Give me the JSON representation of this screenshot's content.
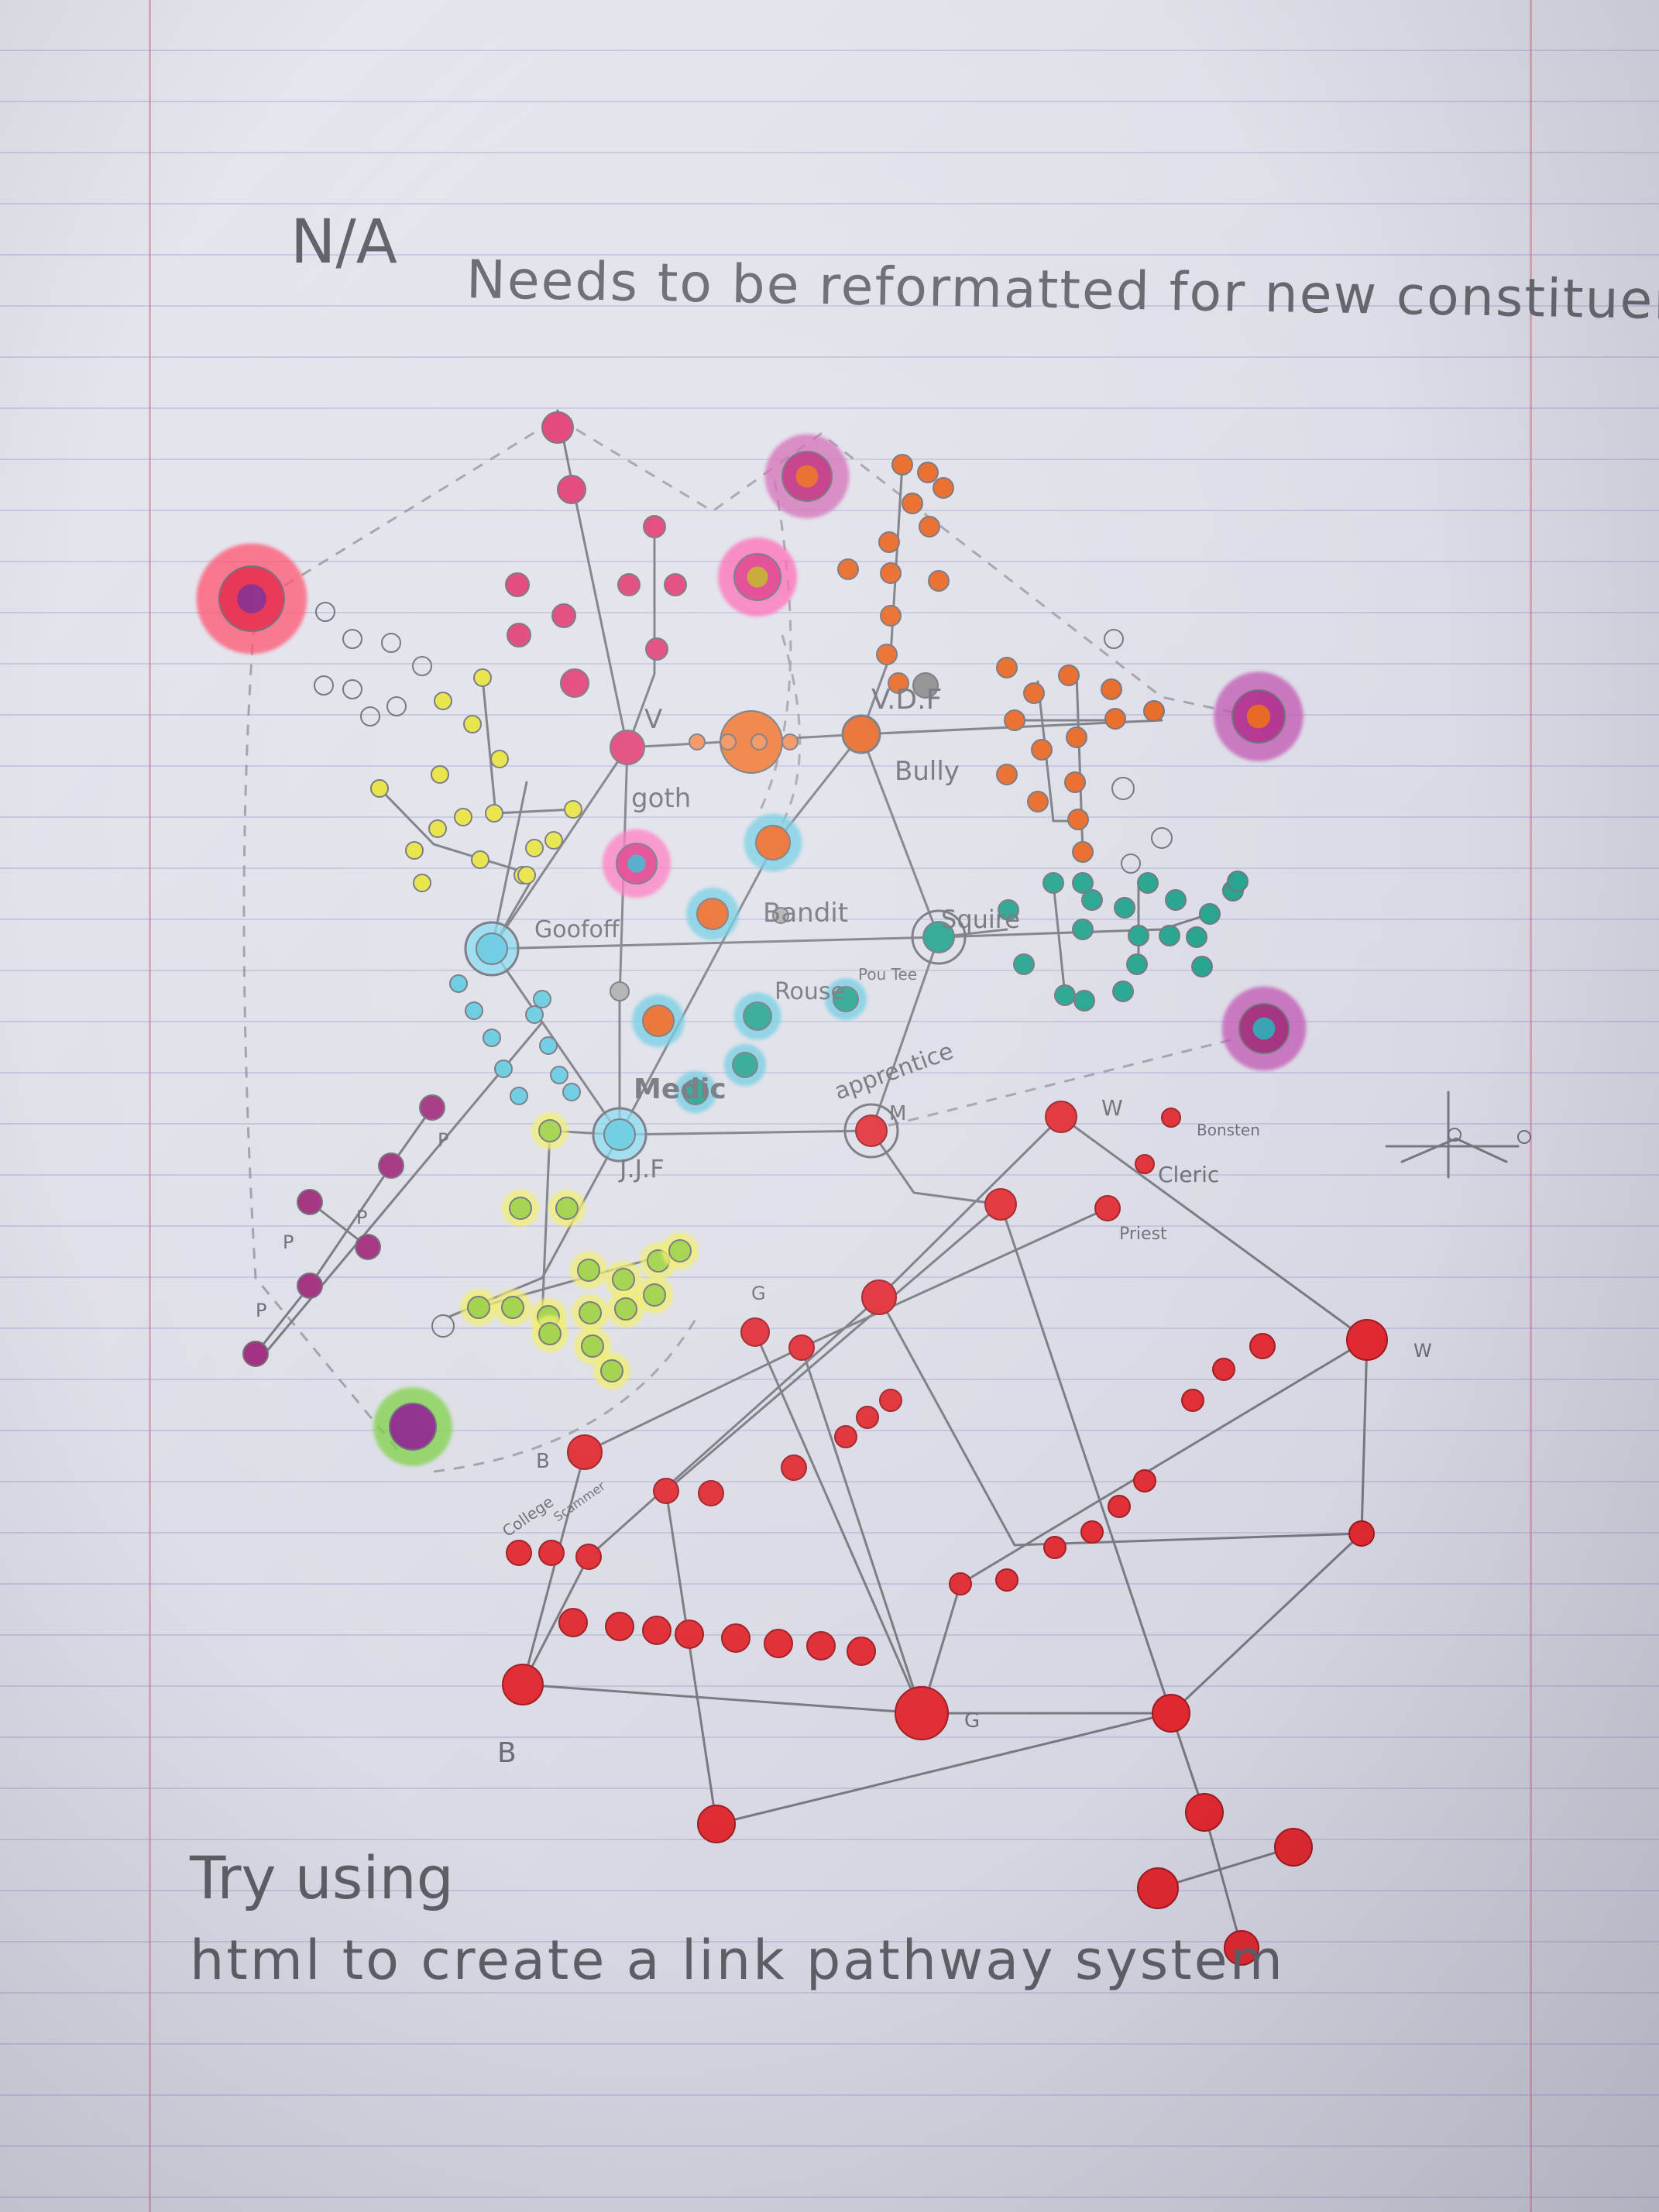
{
  "header": {
    "na_label": "N/A",
    "note": "Needs to be reformatted for new constituences"
  },
  "diagram_labels": {
    "v_top": "V",
    "v_df": "V.D.F",
    "goth": "goth",
    "bully": "Bully",
    "goofoff": "Goofoff",
    "bandit": "Bandit",
    "squire": "Squire",
    "rouse": "Rouse",
    "pou_tee": "Pou Tee",
    "apprentice": "apprentice",
    "medic": "Medic",
    "jjf": "J.J.F",
    "m": "M",
    "w_top": "W",
    "bonsten": "Bonsten",
    "cleric": "Cleric",
    "priest": "Priest",
    "w_right": "W",
    "g_mid": "G",
    "g_bottom": "G",
    "b_mid": "B",
    "b_bottom": "B",
    "college": "College",
    "scammer": "Scammer",
    "p_marks": "P"
  },
  "footer": {
    "line1": "Try using",
    "line2": "html to create a link pathway system"
  },
  "colors": {
    "paper": "#e3e3ec",
    "rule_line": "#8c96cd",
    "margin_line": "#d778a0",
    "pencil": "#6b6b74",
    "pink": "#e03a72",
    "orange": "#e8621c",
    "yellow": "#e6e23a",
    "cyan": "#5fc8e0",
    "teal": "#1aa08a",
    "purple": "#a02c7c",
    "lime": "#9cd040",
    "red": "#e02830",
    "hub_center": "#8b2a8a"
  }
}
